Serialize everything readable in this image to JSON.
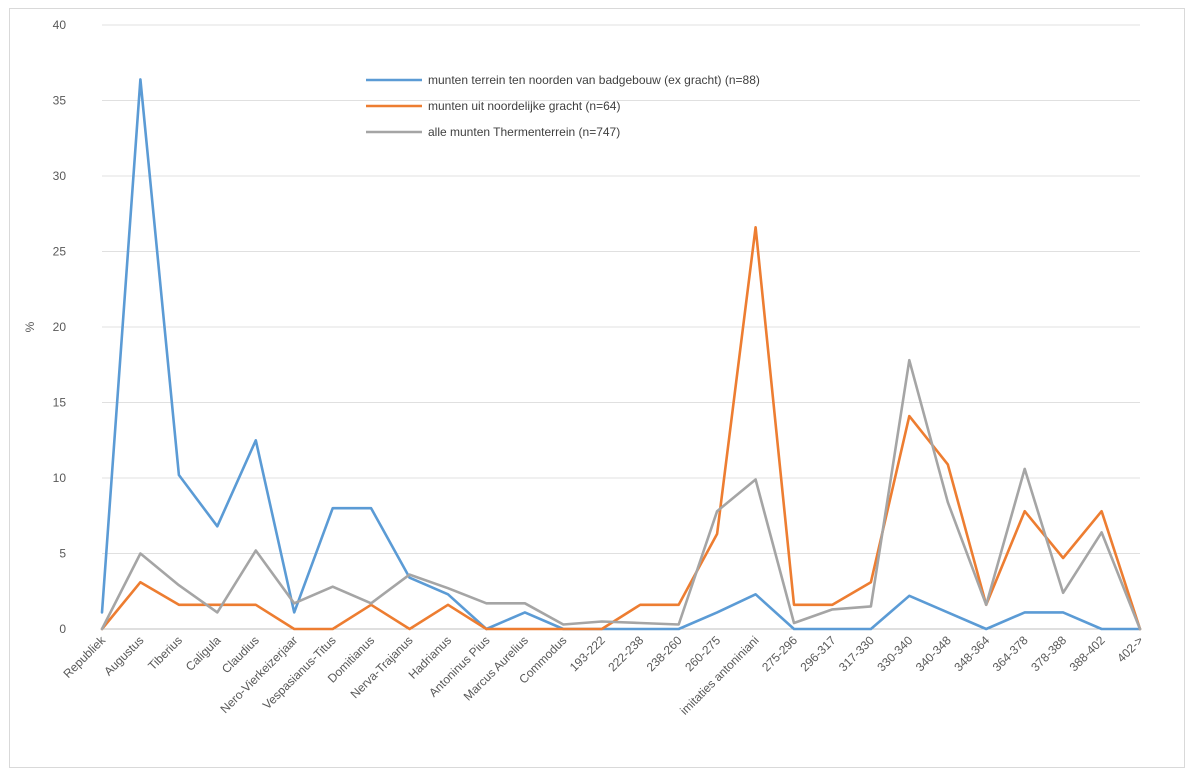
{
  "chart_data": {
    "type": "line",
    "ylabel": "%",
    "ylim": [
      0,
      40
    ],
    "yticks": [
      0,
      5,
      10,
      15,
      20,
      25,
      30,
      35,
      40
    ],
    "grid": true,
    "legend_position": "top-center",
    "categories": [
      "Republiek",
      "Augustus",
      "Tiberius",
      "Caligula",
      "Claudius",
      "Nero-Vierkeizerjaar",
      "Vespasianus-Titus",
      "Domitianus",
      "Nerva-Trajanus",
      "Hadrianus",
      "Antoninus Pius",
      "Marcus Aurelius",
      "Commodus",
      "193-222",
      "222-238",
      "238-260",
      "260-275",
      "imitaties antoniniani",
      "275-296",
      "296-317",
      "317-330",
      "330-340",
      "340-348",
      "348-364",
      "364-378",
      "378-388",
      "388-402",
      "402->"
    ],
    "series": [
      {
        "name": "munten terrein ten noorden van badgebouw (ex gracht) (n=88)",
        "color": "#5b9bd5",
        "values": [
          1.1,
          36.4,
          10.2,
          6.8,
          12.5,
          1.1,
          8.0,
          8.0,
          3.4,
          2.3,
          0,
          1.1,
          0,
          0,
          0,
          0,
          1.1,
          2.3,
          0,
          0,
          0,
          2.2,
          1.1,
          0,
          1.1,
          1.1,
          0,
          0
        ]
      },
      {
        "name": "munten uit noordelijke gracht (n=64)",
        "color": "#ed7d31",
        "values": [
          0,
          3.1,
          1.6,
          1.6,
          1.6,
          0,
          0,
          1.6,
          0,
          1.6,
          0,
          0,
          0,
          0,
          1.6,
          1.6,
          6.3,
          26.6,
          1.6,
          1.6,
          3.1,
          14.1,
          10.9,
          1.6,
          7.8,
          4.7,
          7.8,
          0
        ]
      },
      {
        "name": "alle munten Thermenterrein (n=747)",
        "color": "#a5a5a5",
        "values": [
          0,
          5.0,
          2.9,
          1.1,
          5.2,
          1.7,
          2.8,
          1.7,
          3.6,
          2.7,
          1.7,
          1.7,
          0.3,
          0.5,
          0.4,
          0.3,
          7.8,
          9.9,
          0.4,
          1.3,
          1.5,
          17.8,
          8.4,
          1.6,
          10.6,
          2.4,
          6.4,
          0
        ]
      }
    ]
  }
}
